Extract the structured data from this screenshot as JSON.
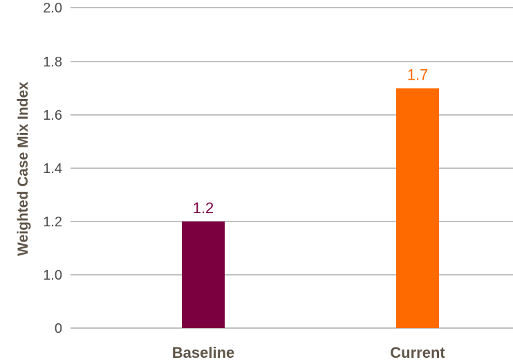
{
  "chart_data": {
    "type": "bar",
    "categories": [
      "Baseline",
      "Current"
    ],
    "values": [
      1.2,
      1.7
    ],
    "value_labels": [
      "1.2",
      "1.7"
    ],
    "bar_colors": [
      "#7a0040",
      "#ff6a00"
    ],
    "ylabel": "Weighted Case Mix Index",
    "y_ticks": [
      "0",
      "1.0",
      "1.2",
      "1.4",
      "1.6",
      "1.8",
      "2.0"
    ],
    "grid": true,
    "axis_break": "The axis jumps from 0 directly to 1.0; ticks above 1.0 are evenly spaced every 0.2."
  }
}
